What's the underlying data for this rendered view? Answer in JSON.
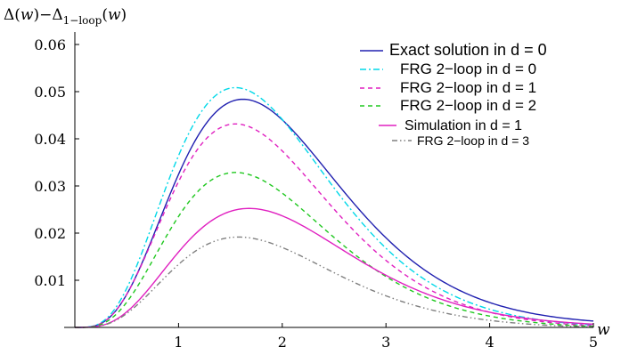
{
  "chart_data": {
    "type": "line",
    "ylabel_parts": {
      "a": "Δ(",
      "b": "w",
      "c": ")−Δ",
      "sub": "1−loop",
      "d": "(",
      "e": "w",
      "f": ")"
    },
    "xlabel": "w",
    "xlim": [
      0,
      5
    ],
    "ylim": [
      0,
      0.065
    ],
    "x_ticks": [
      1,
      2,
      3,
      4,
      5
    ],
    "y_ticks": [
      0.01,
      0.02,
      0.03,
      0.04,
      0.05,
      0.06
    ],
    "y_tick_labels": [
      "0.01",
      "0.02",
      "0.03",
      "0.04",
      "0.05",
      "0.06"
    ],
    "grid": false,
    "legend_position": "top-right",
    "series": [
      {
        "name": "Exact solution in d = 0",
        "color": "#2020b0",
        "dash": "solid",
        "peak_x": 1.62,
        "peak_y": 0.0493,
        "end_y": 0.00135
      },
      {
        "name": "FRG 2−loop in d = 0",
        "color": "#00d8e8",
        "dash": "dashdot",
        "peak_x": 1.55,
        "peak_y": 0.0512,
        "end_y": 0.0005
      },
      {
        "name": "FRG 2−loop in d = 1",
        "color": "#e020c0",
        "dash": "dashed",
        "peak_x": 1.55,
        "peak_y": 0.0434,
        "end_y": 0.00035
      },
      {
        "name": "FRG 2−loop in d = 2",
        "color": "#20c820",
        "dash": "dashed",
        "peak_x": 1.55,
        "peak_y": 0.033,
        "end_y": 0.0002
      },
      {
        "name": "Simulation in d = 1",
        "color": "#e020c0",
        "dash": "solid",
        "peak_x": 1.68,
        "peak_y": 0.0257,
        "end_y": 0.0007
      },
      {
        "name": "FRG 2−loop in d = 3",
        "color": "#808080",
        "dash": "dashdotdot",
        "peak_x": 1.58,
        "peak_y": 0.0192,
        "end_y": 5e-05
      }
    ]
  }
}
